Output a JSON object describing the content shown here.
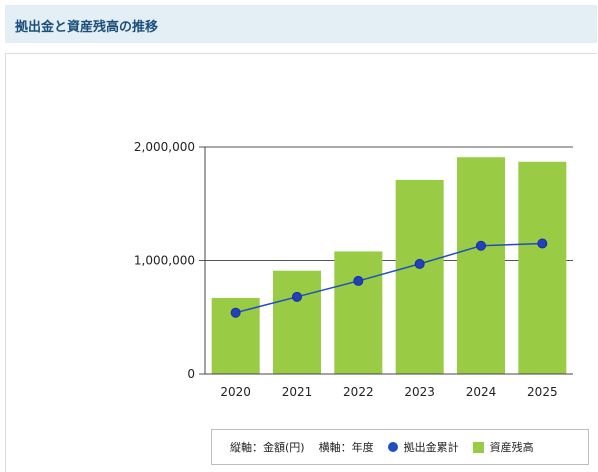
{
  "header": {
    "title": "拠出金と資産残高の推移"
  },
  "chart_data": {
    "type": "bar",
    "categories": [
      "2020",
      "2021",
      "2022",
      "2023",
      "2024",
      "2025"
    ],
    "series": [
      {
        "name": "資産残高",
        "type": "bar",
        "color": "#99cc44",
        "values": [
          670000,
          910000,
          1080000,
          1710000,
          1910000,
          1870000
        ]
      },
      {
        "name": "拠出金累計",
        "type": "line",
        "color": "#1f4fbf",
        "values": [
          540000,
          680000,
          820000,
          970000,
          1130000,
          1150000
        ]
      }
    ],
    "y_ticks": [
      "0",
      "1,000,000",
      "2,000,000"
    ],
    "ylim": [
      0,
      2000000
    ],
    "grid": true,
    "legend": {
      "position": "bottom-right",
      "y_axis_note": "縦軸：金額(円)",
      "x_axis_note": "横軸：年度",
      "line_label": "拠出金累計",
      "bar_label": "資産残高"
    }
  }
}
